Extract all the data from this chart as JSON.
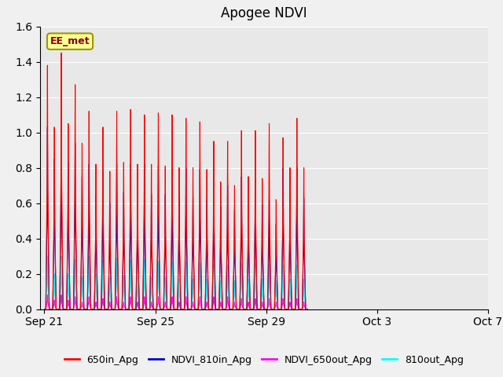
{
  "title": "Apogee NDVI",
  "ylim": [
    0.0,
    1.6
  ],
  "yticks": [
    0.0,
    0.2,
    0.4,
    0.6,
    0.8,
    1.0,
    1.2,
    1.4,
    1.6
  ],
  "fig_bg": "#f0f0f0",
  "plot_bg": "#e8e8e8",
  "series_colors": {
    "650in_Apg": "#ff0000",
    "NDVI_810in_Apg": "#0000cc",
    "NDVI_650out_Apg": "#ff00ff",
    "810out_Apg": "#00ffff"
  },
  "series_labels": [
    "650in_Apg",
    "NDVI_810in_Apg",
    "NDVI_650out_Apg",
    "810out_Apg"
  ],
  "xtick_labels": [
    "Sep 21",
    "Sep 25",
    "Sep 29",
    "Oct 3",
    "Oct 7"
  ],
  "xtick_positions": [
    0,
    4,
    8,
    12,
    16
  ],
  "xlim": [
    -0.3,
    17.8
  ],
  "ee_met_label": "EE_met",
  "ee_met_text_color": "#8b0000",
  "ee_met_bg": "#ffff99",
  "ee_met_border": "#999900",
  "peaks_650in": [
    1.38,
    1.03,
    1.45,
    1.05,
    1.27,
    0.94,
    1.12,
    0.82,
    1.03,
    0.78,
    1.12,
    0.83,
    1.13,
    0.82,
    1.1,
    0.82,
    1.11,
    0.81,
    1.1,
    0.8,
    1.08,
    0.8,
    1.06,
    0.79,
    0.95,
    0.72,
    0.95,
    0.7,
    1.01,
    0.75,
    1.01,
    0.74,
    1.05,
    0.62,
    0.97,
    0.8,
    1.08,
    0.8
  ],
  "peaks_810in": [
    1.03,
    0.85,
    1.05,
    0.83,
    0.94,
    0.75,
    0.82,
    0.65,
    0.78,
    0.6,
    0.82,
    0.66,
    0.82,
    0.65,
    0.82,
    0.65,
    0.81,
    0.65,
    0.8,
    0.63,
    0.8,
    0.63,
    0.79,
    0.62,
    0.72,
    0.58,
    0.7,
    0.56,
    0.75,
    0.6,
    0.74,
    0.59,
    0.62,
    0.48,
    0.8,
    0.63,
    0.8,
    0.63
  ],
  "peaks_650out": [
    0.08,
    0.05,
    0.08,
    0.05,
    0.07,
    0.04,
    0.07,
    0.04,
    0.06,
    0.04,
    0.07,
    0.04,
    0.07,
    0.04,
    0.07,
    0.04,
    0.07,
    0.04,
    0.07,
    0.04,
    0.07,
    0.04,
    0.07,
    0.04,
    0.07,
    0.04,
    0.07,
    0.04,
    0.06,
    0.04,
    0.06,
    0.04,
    0.06,
    0.04,
    0.06,
    0.04,
    0.06,
    0.04
  ],
  "peaks_810out": [
    0.3,
    0.2,
    0.3,
    0.2,
    0.28,
    0.18,
    0.3,
    0.2,
    0.28,
    0.18,
    0.29,
    0.19,
    0.28,
    0.18,
    0.28,
    0.18,
    0.27,
    0.18,
    0.27,
    0.17,
    0.27,
    0.17,
    0.26,
    0.17,
    0.25,
    0.16,
    0.25,
    0.16,
    0.26,
    0.17,
    0.26,
    0.17,
    0.25,
    0.16,
    0.25,
    0.17,
    0.25,
    0.17
  ]
}
